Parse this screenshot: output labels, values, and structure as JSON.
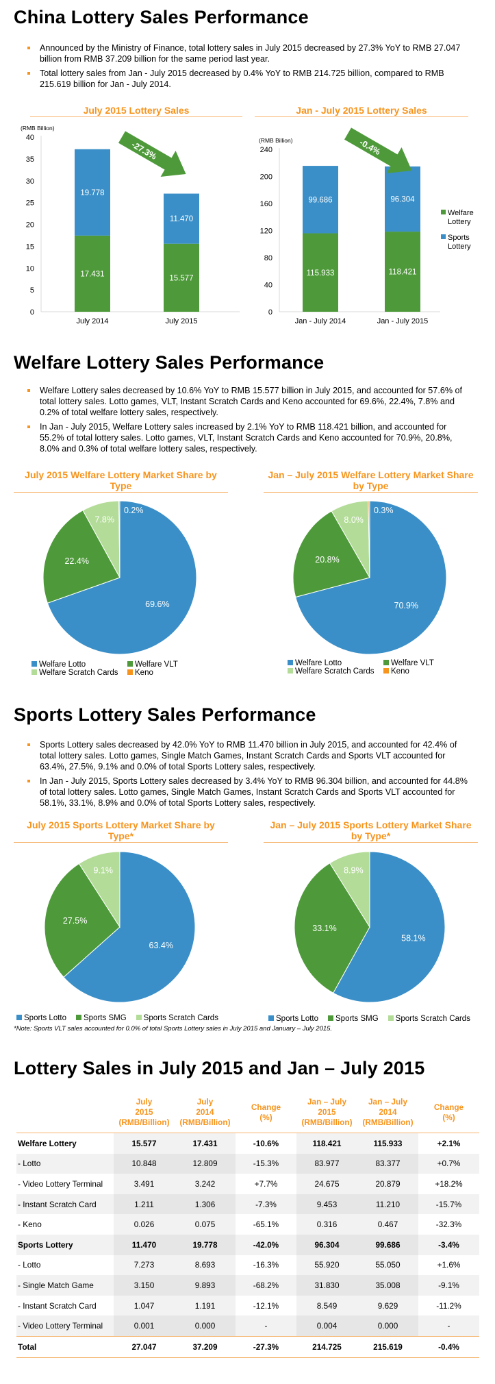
{
  "section1": {
    "title": "China Lottery Sales Performance",
    "bullets": [
      "Announced by the Ministry of Finance, total lottery sales in July 2015 decreased by 27.3% YoY to RMB 27.047 billion from RMB 37.209 billion for the same period last year.",
      "Total lottery sales from Jan - July 2015 decreased by 0.4% YoY to RMB 214.725 billion, compared to RMB 215.619 billion for Jan - July 2014."
    ]
  },
  "section2": {
    "title": "Welfare Lottery Sales Performance",
    "bullets": [
      "Welfare Lottery sales decreased by 10.6% YoY to RMB 15.577 billion in July 2015, and accounted for 57.6% of total lottery sales. Lotto games, VLT, Instant Scratch Cards and Keno accounted for 69.6%, 22.4%, 7.8% and 0.2% of total welfare lottery sales, respectively.",
      "In Jan - July 2015, Welfare Lottery sales increased by 2.1% YoY to RMB 118.421 billion, and accounted for 55.2% of total lottery sales. Lotto games, VLT, Instant Scratch Cards and Keno accounted for 70.9%, 20.8%, 8.0% and 0.3% of total welfare lottery sales, respectively."
    ]
  },
  "section3": {
    "title": "Sports Lottery Sales Performance",
    "bullets": [
      "Sports Lottery sales decreased by 42.0% YoY to RMB 11.470 billion in July 2015, and accounted for 42.4% of total lottery sales. Lotto games, Single Match Games, Instant Scratch Cards and Sports VLT accounted for 63.4%, 27.5%, 9.1% and 0.0% of total Sports Lottery sales, respectively.",
      "In Jan - July 2015, Sports Lottery sales decreased by 3.4% YoY to RMB 96.304 billion, and accounted for 44.8% of total lottery sales. Lotto games, Single Match Games, Instant Scratch Cards and Sports VLT accounted for 58.1%, 33.1%, 8.9% and 0.0% of total Sports Lottery sales, respectively."
    ],
    "note": "*Note: Sports VLT sales accounted for 0.0% of total Sports Lottery sales in July 2015 and January – July 2015."
  },
  "section4": {
    "title": "Lottery Sales in July 2015 and Jan – July 2015"
  },
  "colors": {
    "welfare": "#4e9a3a",
    "sports": "#3a8fc8",
    "lotto": "#3a8fc8",
    "vlt": "#4e9a3a",
    "scratch": "#b3dc98",
    "keno": "#f7941d",
    "accent": "#f7941d"
  },
  "chart_data": [
    {
      "type": "bar",
      "stacked": true,
      "title": "July 2015 Lottery Sales",
      "ylabel": "(RMB Billion)",
      "categories": [
        "July 2014",
        "July 2015"
      ],
      "series": [
        {
          "name": "Welfare Lottery",
          "values": [
            17.431,
            15.577
          ]
        },
        {
          "name": "Sports Lottery",
          "values": [
            19.778,
            11.47
          ]
        }
      ],
      "ylim": [
        0,
        40
      ],
      "yticks": [
        0,
        5,
        10,
        15,
        20,
        25,
        30,
        35,
        40
      ],
      "annotation": "-27.3%"
    },
    {
      "type": "bar",
      "stacked": true,
      "title": "Jan - July 2015 Lottery Sales",
      "ylabel": "(RMB Billion)",
      "categories": [
        "Jan - July 2014",
        "Jan - July 2015"
      ],
      "series": [
        {
          "name": "Welfare Lottery",
          "values": [
            115.933,
            118.421
          ]
        },
        {
          "name": "Sports Lottery",
          "values": [
            99.686,
            96.304
          ]
        }
      ],
      "ylim": [
        0,
        240
      ],
      "yticks": [
        0,
        40,
        80,
        120,
        160,
        200,
        240
      ],
      "annotation": "-0.4%",
      "legend": "right"
    },
    {
      "type": "pie",
      "title": "July 2015 Welfare Lottery Market Share by Type",
      "labels": [
        "Welfare Lotto",
        "Welfare VLT",
        "Welfare Scratch Cards",
        "Keno"
      ],
      "values": [
        69.6,
        22.4,
        7.8,
        0.2
      ],
      "legend": "bottom"
    },
    {
      "type": "pie",
      "title": "Jan – July 2015 Welfare Lottery Market Share by Type",
      "labels": [
        "Welfare Lotto",
        "Welfare VLT",
        "Welfare Scratch Cards",
        "Keno"
      ],
      "values": [
        70.9,
        20.8,
        8.0,
        0.3
      ],
      "legend": "bottom"
    },
    {
      "type": "pie",
      "title": "July 2015 Sports Lottery Market Share by Type*",
      "labels": [
        "Sports Lotto",
        "Sports SMG",
        "Sports Scratch Cards"
      ],
      "values": [
        63.4,
        27.5,
        9.1
      ],
      "legend": "bottom"
    },
    {
      "type": "pie",
      "title": "Jan – July 2015 Sports Lottery Market Share by Type*",
      "labels": [
        "Sports Lotto",
        "Sports SMG",
        "Sports Scratch Cards"
      ],
      "values": [
        58.1,
        33.1,
        8.9
      ],
      "legend": "bottom"
    },
    {
      "type": "table",
      "columns": [
        "",
        "July 2015 (RMB/Billion)",
        "July 2014 (RMB/Billion)",
        "Change (%)",
        "Jan – July 2015 (RMB/Billion)",
        "Jan – July 2014 (RMB/Billion)",
        "Change (%)"
      ],
      "rows": [
        {
          "label": "Welfare Lottery",
          "bold": true,
          "cells": [
            "15.577",
            "17.431",
            "-10.6%",
            "118.421",
            "115.933",
            "+2.1%"
          ]
        },
        {
          "label": "- Lotto",
          "cells": [
            "10.848",
            "12.809",
            "-15.3%",
            "83.977",
            "83.377",
            "+0.7%"
          ]
        },
        {
          "label": "- Video Lottery Terminal",
          "cells": [
            "3.491",
            "3.242",
            "+7.7%",
            "24.675",
            "20.879",
            "+18.2%"
          ]
        },
        {
          "label": "- Instant Scratch Card",
          "cells": [
            "1.211",
            "1.306",
            "-7.3%",
            "9.453",
            "11.210",
            "-15.7%"
          ]
        },
        {
          "label": "- Keno",
          "cells": [
            "0.026",
            "0.075",
            "-65.1%",
            "0.316",
            "0.467",
            "-32.3%"
          ]
        },
        {
          "label": "Sports Lottery",
          "bold": true,
          "cells": [
            "11.470",
            "19.778",
            "-42.0%",
            "96.304",
            "99.686",
            "-3.4%"
          ]
        },
        {
          "label": "- Lotto",
          "cells": [
            "7.273",
            "8.693",
            "-16.3%",
            "55.920",
            "55.050",
            "+1.6%"
          ]
        },
        {
          "label": "- Single Match Game",
          "cells": [
            "3.150",
            "9.893",
            "-68.2%",
            "31.830",
            "35.008",
            "-9.1%"
          ]
        },
        {
          "label": "- Instant Scratch Card",
          "cells": [
            "1.047",
            "1.191",
            "-12.1%",
            "8.549",
            "9.629",
            "-11.2%"
          ]
        },
        {
          "label": "- Video Lottery Terminal",
          "cells": [
            "0.001",
            "0.000",
            "-",
            "0.004",
            "0.000",
            "-"
          ]
        },
        {
          "label": "Total",
          "bold": true,
          "cells": [
            "27.047",
            "37.209",
            "-27.3%",
            "214.725",
            "215.619",
            "-0.4%"
          ]
        }
      ]
    }
  ]
}
